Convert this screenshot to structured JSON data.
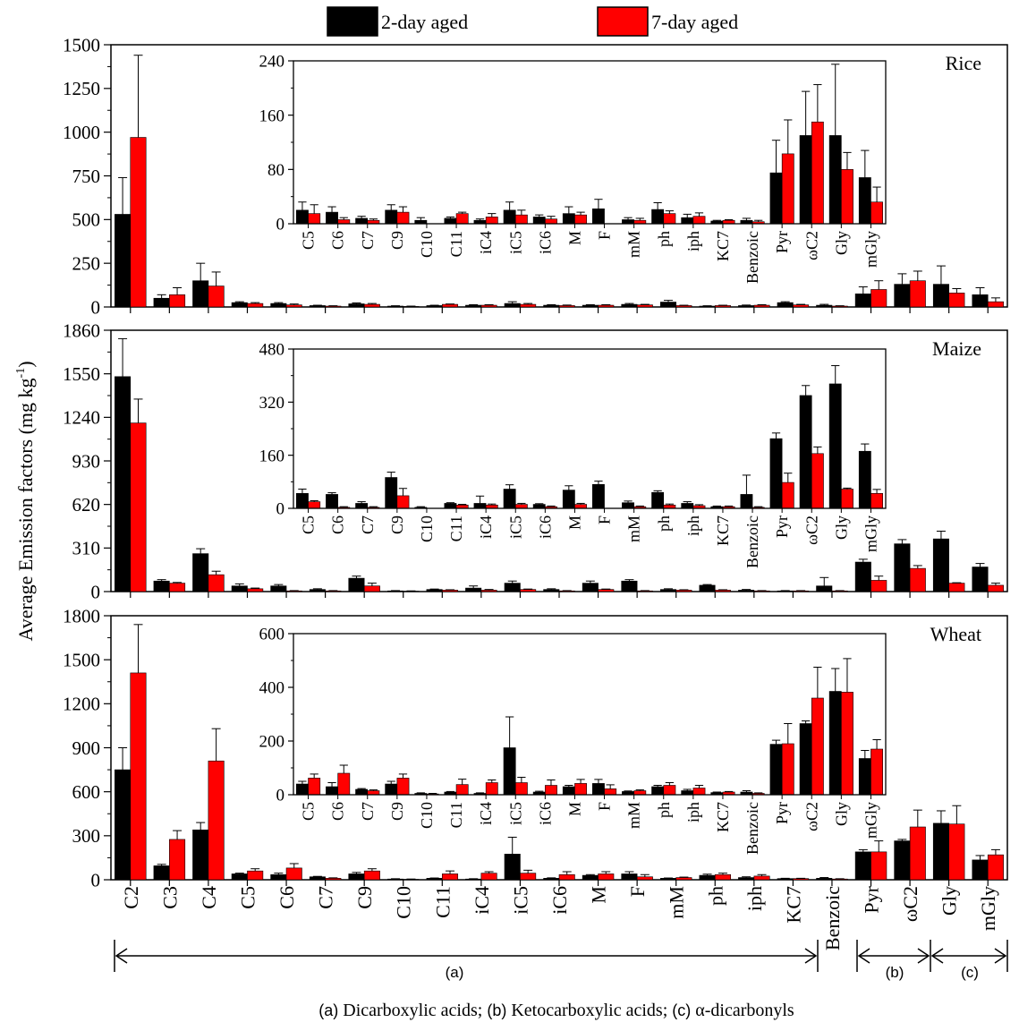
{
  "legend": [
    {
      "label": "2-day aged",
      "color": "#000000"
    },
    {
      "label": "7-day aged",
      "color": "#ff0000"
    }
  ],
  "ylabel": "Average Emission factors (mg kg",
  "ylabel_sup": "-1",
  "ylabel_close": ")",
  "groups": {
    "a_label": "(a)",
    "b_label": "(b)",
    "c_label": "(c)",
    "caption_a": "(a)",
    "caption_a_text": " Dicarboxylic acids; ",
    "caption_b": "(b)",
    "caption_b_text": " Ketocarboxylic acids; ",
    "caption_c": "(c)",
    "caption_c_text": " α-dicarbonyls"
  },
  "chart_data": [
    {
      "type": "bar",
      "title": "Rice",
      "categories": [
        "C2",
        "C3",
        "C4",
        "C5",
        "C6",
        "C7",
        "C9",
        "C10",
        "C11",
        "iC4",
        "iC5",
        "iC6",
        "M",
        "F",
        "mM",
        "ph",
        "iph",
        "KC7",
        "Benzoic",
        "Pyr",
        "ωC2",
        "Gly",
        "mGly"
      ],
      "ylim": [
        0,
        1500
      ],
      "yticks": [
        0,
        250,
        500,
        750,
        1000,
        1250,
        1500
      ],
      "series": [
        {
          "name": "2-day aged",
          "values": [
            530,
            50,
            150,
            25,
            20,
            8,
            18,
            5,
            8,
            10,
            20,
            10,
            10,
            15,
            28,
            5,
            8,
            25,
            10,
            75,
            130,
            130,
            70
          ],
          "errors": [
            210,
            20,
            100,
            5,
            5,
            2,
            5,
            2,
            2,
            3,
            10,
            3,
            3,
            5,
            10,
            2,
            3,
            5,
            5,
            40,
            60,
            105,
            40
          ]
        },
        {
          "name": "7-day aged",
          "values": [
            970,
            70,
            120,
            20,
            12,
            5,
            15,
            3,
            15,
            10,
            15,
            8,
            10,
            12,
            8,
            8,
            10,
            12,
            5,
            100,
            150,
            80,
            30
          ],
          "errors": [
            470,
            40,
            80,
            5,
            5,
            2,
            5,
            2,
            2,
            3,
            5,
            3,
            3,
            3,
            2,
            2,
            3,
            3,
            2,
            50,
            55,
            25,
            22
          ]
        }
      ],
      "inset": {
        "categories": [
          "C5",
          "C6",
          "C7",
          "C9",
          "C10",
          "C11",
          "iC4",
          "iC5",
          "iC6",
          "M",
          "F",
          "mM",
          "ph",
          "iph",
          "KC7",
          "Benzoic",
          "Pyr",
          "ωC2",
          "Gly",
          "mGly"
        ],
        "ylim": [
          0,
          240
        ],
        "yticks": [
          0,
          80,
          160,
          240
        ],
        "series": [
          {
            "name": "2-day aged",
            "values": [
              20,
              17,
              8,
              20,
              5,
              8,
              5,
              20,
              10,
              15,
              22,
              6,
              21,
              9,
              4,
              5,
              75,
              130,
              130,
              68
            ],
            "errors": [
              12,
              8,
              3,
              8,
              4,
              2,
              2,
              12,
              3,
              10,
              14,
              3,
              10,
              5,
              1,
              3,
              48,
              65,
              105,
              40
            ]
          },
          {
            "name": "7-day aged",
            "values": [
              15,
              6,
              5,
              17,
              0,
              15,
              10,
              13,
              7,
              13,
              0,
              5,
              15,
              11,
              5,
              3,
              103,
              150,
              80,
              32
            ],
            "errors": [
              13,
              3,
              2,
              8,
              0,
              2,
              5,
              7,
              4,
              4,
              0,
              3,
              4,
              5,
              1,
              2,
              50,
              55,
              25,
              22
            ]
          }
        ]
      }
    },
    {
      "type": "bar",
      "title": "Maize",
      "categories": [
        "C2",
        "C3",
        "C4",
        "C5",
        "C6",
        "C7",
        "C9",
        "C10",
        "C11",
        "iC4",
        "iC5",
        "iC6",
        "M",
        "F",
        "mM",
        "ph",
        "iph",
        "KC7",
        "Benzoic",
        "Pyr",
        "ωC2",
        "Gly",
        "mGly"
      ],
      "ylim": [
        0,
        1860
      ],
      "yticks": [
        0,
        310,
        620,
        930,
        1240,
        1550,
        1860
      ],
      "series": [
        {
          "name": "2-day aged",
          "values": [
            1530,
            75,
            270,
            40,
            40,
            15,
            95,
            5,
            15,
            25,
            60,
            15,
            60,
            75,
            15,
            45,
            10,
            5,
            40,
            210,
            340,
            375,
            175
          ],
          "errors": [
            270,
            10,
            35,
            15,
            10,
            5,
            15,
            2,
            3,
            15,
            15,
            5,
            15,
            10,
            5,
            5,
            5,
            2,
            60,
            20,
            30,
            55,
            25
          ]
        },
        {
          "name": "7-day aged",
          "values": [
            1200,
            60,
            120,
            20,
            5,
            5,
            40,
            3,
            10,
            10,
            15,
            5,
            15,
            5,
            10,
            10,
            5,
            5,
            5,
            80,
            165,
            60,
            45
          ],
          "errors": [
            170,
            5,
            25,
            5,
            2,
            2,
            20,
            2,
            3,
            5,
            3,
            2,
            3,
            2,
            3,
            3,
            2,
            2,
            2,
            30,
            20,
            3,
            15
          ]
        }
      ],
      "inset": {
        "categories": [
          "C5",
          "C6",
          "C7",
          "C9",
          "C10",
          "C11",
          "iC4",
          "iC5",
          "iC6",
          "M",
          "F",
          "mM",
          "ph",
          "iph",
          "KC7",
          "Benzoic",
          "Pyr",
          "ωC2",
          "Gly",
          "mGly"
        ],
        "ylim": [
          0,
          480
        ],
        "yticks": [
          0,
          160,
          320,
          480
        ],
        "series": [
          {
            "name": "2-day aged",
            "values": [
              45,
              42,
              15,
              93,
              3,
              15,
              15,
              58,
              12,
              55,
              72,
              17,
              48,
              15,
              5,
              42,
              210,
              340,
              375,
              172
            ],
            "errors": [
              13,
              5,
              5,
              16,
              2,
              2,
              22,
              13,
              2,
              13,
              10,
              5,
              5,
              5,
              2,
              58,
              17,
              30,
              55,
              22
            ]
          },
          {
            "name": "7-day aged",
            "values": [
              20,
              3,
              3,
              38,
              0,
              10,
              10,
              12,
              5,
              12,
              0,
              5,
              10,
              8,
              5,
              3,
              78,
              165,
              58,
              45
            ],
            "errors": [
              3,
              2,
              2,
              22,
              0,
              2,
              3,
              3,
              2,
              3,
              0,
              2,
              3,
              3,
              2,
              2,
              28,
              20,
              3,
              12
            ]
          }
        ]
      }
    },
    {
      "type": "bar",
      "title": "Wheat",
      "categories": [
        "C2",
        "C3",
        "C4",
        "C5",
        "C6",
        "C7",
        "C9",
        "C10",
        "C11",
        "iC4",
        "iC5",
        "iC6",
        "M",
        "F",
        "mM",
        "ph",
        "iph",
        "KC7",
        "Benzoic",
        "Pyr",
        "ωC2",
        "Gly",
        "mGly"
      ],
      "ylim": [
        0,
        1800
      ],
      "yticks": [
        0,
        300,
        600,
        900,
        1200,
        1500,
        1800
      ],
      "series": [
        {
          "name": "2-day aged",
          "values": [
            750,
            95,
            340,
            40,
            35,
            20,
            40,
            5,
            10,
            5,
            175,
            10,
            30,
            40,
            10,
            30,
            15,
            8,
            10,
            190,
            265,
            385,
            135
          ],
          "errors": [
            150,
            10,
            50,
            5,
            10,
            3,
            10,
            2,
            2,
            2,
            115,
            3,
            5,
            15,
            2,
            8,
            5,
            2,
            5,
            15,
            10,
            85,
            30
          ]
        },
        {
          "name": "7-day aged",
          "values": [
            1410,
            275,
            810,
            60,
            80,
            10,
            60,
            3,
            40,
            45,
            45,
            35,
            40,
            20,
            15,
            35,
            25,
            8,
            5,
            190,
            360,
            380,
            170
          ],
          "errors": [
            330,
            60,
            220,
            15,
            30,
            3,
            15,
            2,
            20,
            10,
            20,
            20,
            15,
            15,
            3,
            10,
            10,
            2,
            2,
            75,
            115,
            125,
            35
          ]
        }
      ],
      "inset": {
        "categories": [
          "C5",
          "C6",
          "C7",
          "C9",
          "C10",
          "C11",
          "iC4",
          "iC5",
          "iC6",
          "M",
          "F",
          "mM",
          "ph",
          "iph",
          "KC7",
          "Benzoic",
          "Pyr",
          "ωC2",
          "Gly",
          "mGly"
        ],
        "ylim": [
          0,
          600
        ],
        "yticks": [
          0,
          200,
          400,
          600
        ],
        "series": [
          {
            "name": "2-day aged",
            "values": [
              40,
              30,
              20,
              40,
              5,
              10,
              5,
              175,
              10,
              30,
              42,
              12,
              30,
              15,
              8,
              10,
              188,
              265,
              385,
              135
            ],
            "errors": [
              10,
              15,
              3,
              10,
              2,
              2,
              2,
              115,
              3,
              5,
              15,
              2,
              5,
              5,
              2,
              5,
              15,
              10,
              85,
              30
            ]
          },
          {
            "name": "7-day aged",
            "values": [
              62,
              80,
              15,
              62,
              3,
              38,
              45,
              45,
              35,
              42,
              22,
              15,
              35,
              25,
              10,
              5,
              190,
              360,
              382,
              170
            ],
            "errors": [
              15,
              30,
              3,
              15,
              2,
              20,
              10,
              20,
              20,
              15,
              15,
              3,
              10,
              10,
              2,
              2,
              75,
              115,
              125,
              35
            ]
          }
        ]
      }
    }
  ]
}
